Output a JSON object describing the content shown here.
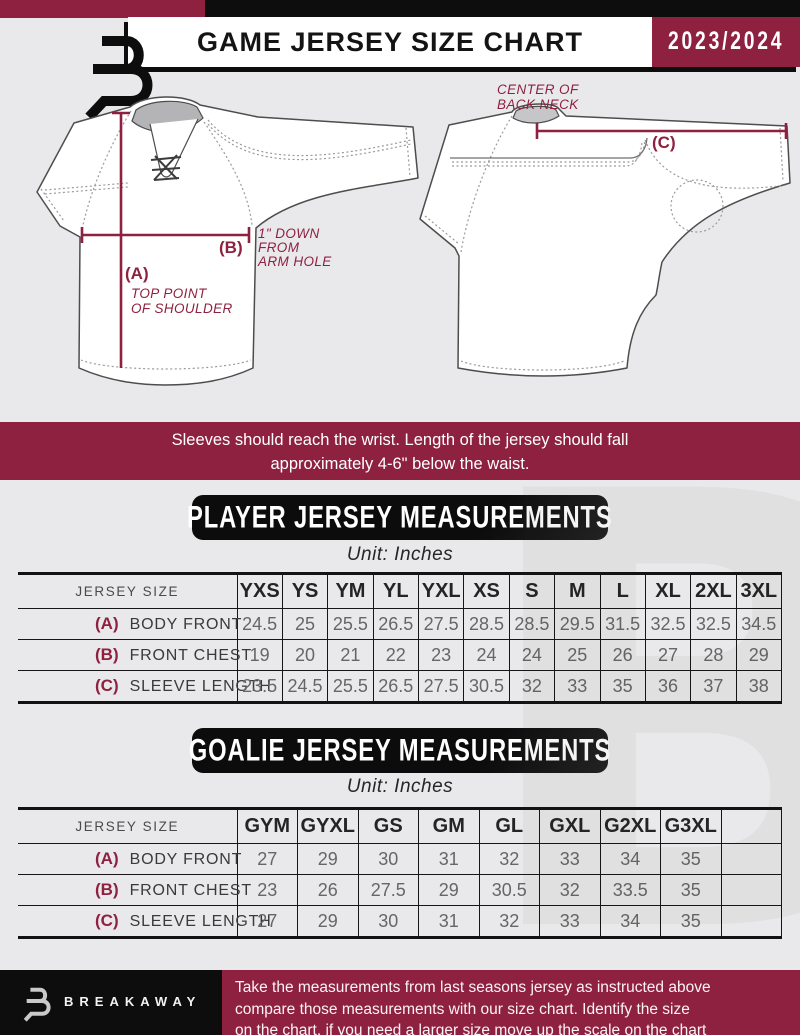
{
  "header": {
    "title": "GAME JERSEY SIZE CHART",
    "season": "2023/2024",
    "logo": "breakaway-b-logo"
  },
  "diagram": {
    "front": {
      "a_tag": "(A)",
      "a_note_lines": [
        "TOP POINT",
        "OF SHOULDER"
      ],
      "b_tag": "(B)",
      "b_note_lines": [
        "1\" DOWN",
        "FROM",
        "ARM HOLE"
      ]
    },
    "back": {
      "c_tag": "(C)",
      "c_note_lines": [
        "CENTER OF",
        "BACK NECK"
      ]
    }
  },
  "notice": {
    "lines": [
      "Sleeves should reach the wrist. Length of the jersey should fall",
      "approximately 4-6\" below the waist."
    ]
  },
  "player": {
    "banner": "PLAYER JERSEY MEASUREMENTS",
    "unit": "Unit: Inches",
    "table": {
      "corner": "JERSEY SIZE",
      "sizes": [
        "YXS",
        "YS",
        "YM",
        "YL",
        "YXL",
        "XS",
        "S",
        "M",
        "L",
        "XL",
        "2XL",
        "3XL"
      ],
      "rows": [
        {
          "tag": "(A)",
          "label": "BODY FRONT",
          "values": [
            "24.5",
            "25",
            "25.5",
            "26.5",
            "27.5",
            "28.5",
            "28.5",
            "29.5",
            "31.5",
            "32.5",
            "32.5",
            "34.5"
          ]
        },
        {
          "tag": "(B)",
          "label": "FRONT CHEST",
          "values": [
            "19",
            "20",
            "21",
            "22",
            "23",
            "24",
            "24",
            "25",
            "26",
            "27",
            "28",
            "29"
          ]
        },
        {
          "tag": "(C)",
          "label": "SLEEVE LENGTH",
          "values": [
            "23.5",
            "24.5",
            "25.5",
            "26.5",
            "27.5",
            "30.5",
            "32",
            "33",
            "35",
            "36",
            "37",
            "38"
          ]
        }
      ]
    }
  },
  "goalie": {
    "banner": "GOALIE JERSEY MEASUREMENTS",
    "unit": "Unit: Inches",
    "table": {
      "corner": "JERSEY SIZE",
      "sizes": [
        "GYM",
        "GYXL",
        "GS",
        "GM",
        "GL",
        "GXL",
        "G2XL",
        "G3XL",
        ""
      ],
      "rows": [
        {
          "tag": "(A)",
          "label": "BODY FRONT",
          "values": [
            "27",
            "29",
            "30",
            "31",
            "32",
            "33",
            "34",
            "35",
            ""
          ]
        },
        {
          "tag": "(B)",
          "label": "FRONT CHEST",
          "values": [
            "23",
            "26",
            "27.5",
            "29",
            "30.5",
            "32",
            "33.5",
            "35",
            ""
          ]
        },
        {
          "tag": "(C)",
          "label": "SLEEVE LENGTH",
          "values": [
            "27",
            "29",
            "30",
            "31",
            "32",
            "33",
            "34",
            "35",
            ""
          ]
        }
      ]
    }
  },
  "watermark": {
    "letter": "B"
  },
  "footer": {
    "brand": "BREAKAWAY",
    "lines": [
      "Take the measurements from last seasons jersey as instructed above",
      "compare those measurements with our size chart. Identify the size",
      "on the chart, if you need a larger size move up the scale on the chart"
    ]
  },
  "colors": {
    "maroon": "#8e2140",
    "black": "#0d0d0d",
    "page_bg": "#e9e9eb"
  }
}
